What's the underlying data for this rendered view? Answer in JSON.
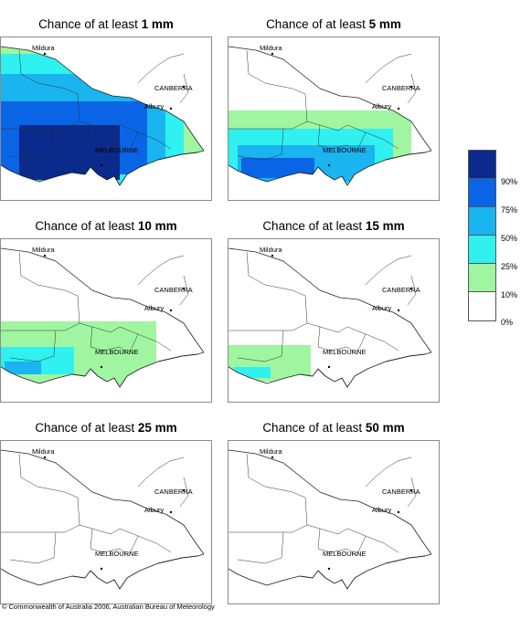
{
  "title_prefix": "Chance of at least",
  "cities": [
    {
      "key": "mildura",
      "label": "Mildura"
    },
    {
      "key": "canberra",
      "label": "CANBERRA"
    },
    {
      "key": "albury",
      "label": "Albury"
    },
    {
      "key": "melbourne",
      "label": "MELBOURNE"
    }
  ],
  "panels": [
    {
      "key": "p1",
      "threshold": "1 mm",
      "coverage": "high"
    },
    {
      "key": "p5",
      "threshold": "5 mm",
      "coverage": "medium"
    },
    {
      "key": "p10",
      "threshold": "10 mm",
      "coverage": "low"
    },
    {
      "key": "p15",
      "threshold": "15 mm",
      "coverage": "lower"
    },
    {
      "key": "p25",
      "threshold": "25 mm",
      "coverage": "minimal"
    },
    {
      "key": "p50",
      "threshold": "50 mm",
      "coverage": "none"
    }
  ],
  "legend": {
    "labels": [
      "90%",
      "75%",
      "50%",
      "25%",
      "10%",
      "0%"
    ],
    "colors": [
      "#0a2a8c",
      "#0a64e6",
      "#1ab4f0",
      "#30f0f0",
      "#a0f5a0",
      "#ffffff"
    ]
  },
  "copyright": "© Commonwealth of Australia 2006, Australian Bureau of Meteorology"
}
